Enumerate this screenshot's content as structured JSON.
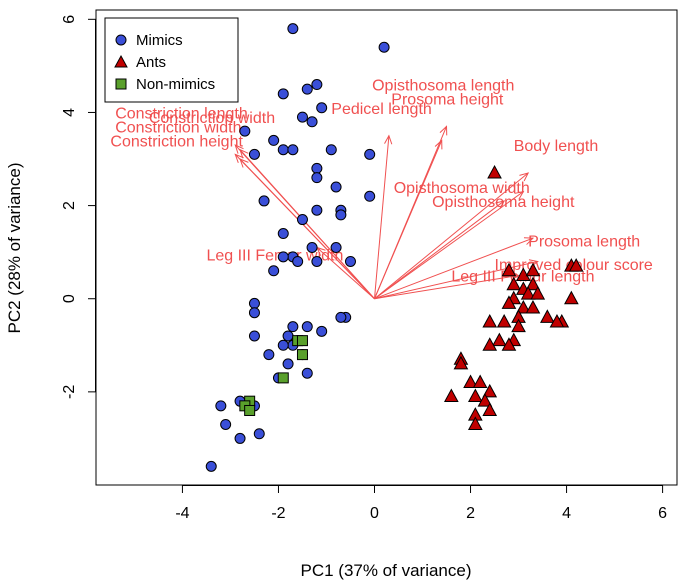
{
  "chart_data": {
    "type": "scatter",
    "xlabel": "PC1 (37% of variance)",
    "ylabel": "PC2 (28% of variance)",
    "xlim": [
      -5.8,
      6.3
    ],
    "ylim": [
      -4.0,
      6.2
    ],
    "xticks": [
      -4,
      -2,
      0,
      2,
      4,
      6
    ],
    "yticks": [
      -2,
      0,
      2,
      4,
      6
    ],
    "grid": false,
    "legend_position": "top-left",
    "series": [
      {
        "name": "Mimics",
        "marker": "circle",
        "color": "#3a4fd8",
        "points": [
          [
            -1.7,
            5.8
          ],
          [
            0.2,
            5.4
          ],
          [
            -1.2,
            4.6
          ],
          [
            -1.4,
            4.5
          ],
          [
            -1.9,
            4.4
          ],
          [
            -1.1,
            4.1
          ],
          [
            -1.5,
            3.9
          ],
          [
            -1.3,
            3.8
          ],
          [
            -2.7,
            3.6
          ],
          [
            -2.1,
            3.4
          ],
          [
            -1.9,
            3.2
          ],
          [
            -2.5,
            3.1
          ],
          [
            -1.7,
            3.2
          ],
          [
            -0.9,
            3.2
          ],
          [
            -0.1,
            3.1
          ],
          [
            -1.2,
            2.8
          ],
          [
            -1.2,
            2.6
          ],
          [
            -0.8,
            2.4
          ],
          [
            -0.1,
            2.2
          ],
          [
            -2.3,
            2.1
          ],
          [
            -1.2,
            1.9
          ],
          [
            -0.7,
            1.9
          ],
          [
            -0.7,
            1.8
          ],
          [
            -1.5,
            1.7
          ],
          [
            -1.9,
            1.4
          ],
          [
            -1.3,
            1.1
          ],
          [
            -0.8,
            1.1
          ],
          [
            -1.7,
            0.9
          ],
          [
            -1.9,
            0.9
          ],
          [
            -1.2,
            0.8
          ],
          [
            -0.5,
            0.8
          ],
          [
            -2.1,
            0.6
          ],
          [
            -1.6,
            0.8
          ],
          [
            -2.5,
            -0.1
          ],
          [
            -2.5,
            -0.3
          ],
          [
            -0.6,
            -0.4
          ],
          [
            -0.7,
            -0.4
          ],
          [
            -1.4,
            -0.6
          ],
          [
            -1.7,
            -0.6
          ],
          [
            -1.1,
            -0.7
          ],
          [
            -2.5,
            -0.8
          ],
          [
            -1.8,
            -0.8
          ],
          [
            -1.6,
            -0.9
          ],
          [
            -1.7,
            -1.0
          ],
          [
            -2.2,
            -1.2
          ],
          [
            -1.9,
            -1.0
          ],
          [
            -1.5,
            -1.2
          ],
          [
            -1.8,
            -1.4
          ],
          [
            -1.4,
            -1.6
          ],
          [
            -2.0,
            -1.7
          ],
          [
            -2.5,
            -2.3
          ],
          [
            -2.8,
            -2.2
          ],
          [
            -3.2,
            -2.3
          ],
          [
            -3.1,
            -2.7
          ],
          [
            -2.4,
            -2.9
          ],
          [
            -3.4,
            -3.6
          ],
          [
            -2.8,
            -3.0
          ]
        ]
      },
      {
        "name": "Ants",
        "marker": "triangle",
        "color": "#c00000",
        "points": [
          [
            2.5,
            2.7
          ],
          [
            2.8,
            0.6
          ],
          [
            3.1,
            0.5
          ],
          [
            3.3,
            0.6
          ],
          [
            4.1,
            0.7
          ],
          [
            4.2,
            0.7
          ],
          [
            2.9,
            0.3
          ],
          [
            3.1,
            0.2
          ],
          [
            3.3,
            0.3
          ],
          [
            3.2,
            0.1
          ],
          [
            2.9,
            0.0
          ],
          [
            3.4,
            0.1
          ],
          [
            2.8,
            -0.1
          ],
          [
            3.1,
            -0.2
          ],
          [
            3.3,
            -0.2
          ],
          [
            4.1,
            0.0
          ],
          [
            3.0,
            -0.4
          ],
          [
            2.7,
            -0.5
          ],
          [
            3.6,
            -0.4
          ],
          [
            3.9,
            -0.5
          ],
          [
            3.8,
            -0.5
          ],
          [
            2.4,
            -0.5
          ],
          [
            3.0,
            -0.6
          ],
          [
            2.6,
            -0.9
          ],
          [
            2.9,
            -0.9
          ],
          [
            2.4,
            -1.0
          ],
          [
            2.8,
            -1.0
          ],
          [
            1.8,
            -1.3
          ],
          [
            1.8,
            -1.4
          ],
          [
            2.0,
            -1.8
          ],
          [
            2.2,
            -1.8
          ],
          [
            2.4,
            -2.0
          ],
          [
            1.6,
            -2.1
          ],
          [
            2.1,
            -2.1
          ],
          [
            2.3,
            -2.2
          ],
          [
            2.1,
            -2.5
          ],
          [
            2.4,
            -2.4
          ],
          [
            2.1,
            -2.7
          ]
        ]
      },
      {
        "name": "Non-mimics",
        "marker": "square",
        "color": "#5aa02c",
        "points": [
          [
            -1.6,
            -0.9
          ],
          [
            -1.5,
            -0.9
          ],
          [
            -1.5,
            -1.2
          ],
          [
            -1.9,
            -1.7
          ],
          [
            -2.6,
            -2.2
          ],
          [
            -2.7,
            -2.3
          ],
          [
            -2.6,
            -2.4
          ]
        ]
      }
    ],
    "loadings": {
      "color": "#f05050",
      "vectors": [
        {
          "label": "Constriction width",
          "x": -2.8,
          "y": 3.2,
          "label_x": -4.7,
          "label_y": 3.9,
          "anchor": "start"
        },
        {
          "label": "Constriction width",
          "x": -2.9,
          "y": 3.1,
          "label_x": -5.4,
          "label_y": 3.7,
          "anchor": "start"
        },
        {
          "label": "Constriction length",
          "x": -2.9,
          "y": 3.3,
          "label_x": -5.4,
          "label_y": 4.0,
          "anchor": "start"
        },
        {
          "label": "Constriction height",
          "x": -2.8,
          "y": 3.0,
          "label_x": -5.5,
          "label_y": 3.4,
          "anchor": "start"
        },
        {
          "label": "Leg III Femur width",
          "x": -1.2,
          "y": 1.1,
          "label_x": -3.5,
          "label_y": 0.95,
          "anchor": "start"
        },
        {
          "label": "Pedicel length",
          "x": 0.3,
          "y": 3.5,
          "label_x": -0.9,
          "label_y": 4.1,
          "anchor": "start"
        },
        {
          "label": "Opisthosoma length",
          "x": 1.5,
          "y": 3.7,
          "label_x": -0.05,
          "label_y": 4.6,
          "anchor": "start"
        },
        {
          "label": "Prosoma height",
          "x": 1.4,
          "y": 3.4,
          "label_x": 0.35,
          "label_y": 4.3,
          "anchor": "start"
        },
        {
          "label": "Body length",
          "x": 3.2,
          "y": 2.7,
          "label_x": 2.9,
          "label_y": 3.3,
          "anchor": "start"
        },
        {
          "label": "Opisthosoma width",
          "x": 3.1,
          "y": 2.3,
          "label_x": 0.4,
          "label_y": 2.4,
          "anchor": "start"
        },
        {
          "label": "Opisthosoma height",
          "x": 2.7,
          "y": 2.1,
          "label_x": 1.2,
          "label_y": 2.1,
          "anchor": "start"
        },
        {
          "label": "Prosoma length",
          "x": 3.3,
          "y": 1.3,
          "label_x": 3.2,
          "label_y": 1.25,
          "anchor": "start"
        },
        {
          "label": "Improved colour score",
          "x": 3.4,
          "y": 0.8,
          "label_x": 2.5,
          "label_y": 0.75,
          "anchor": "start"
        },
        {
          "label": "Leg III Femur length",
          "x": 3.0,
          "y": 0.5,
          "label_x": 1.6,
          "label_y": 0.5,
          "anchor": "start"
        }
      ]
    }
  }
}
